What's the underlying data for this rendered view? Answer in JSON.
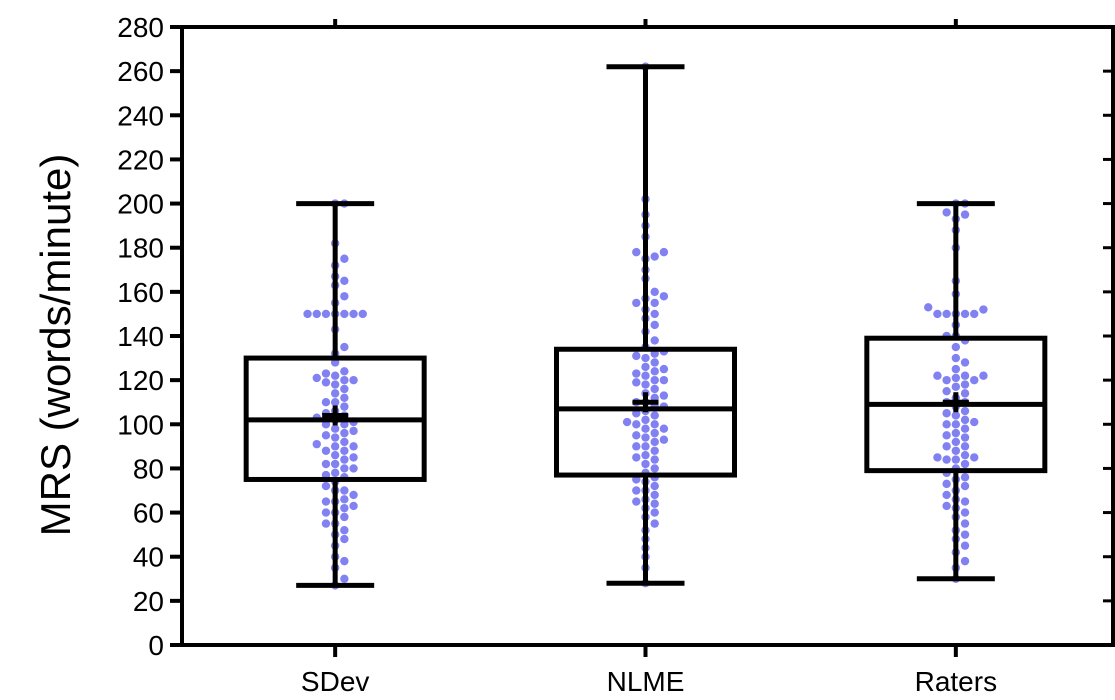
{
  "chart_data": {
    "type": "box",
    "ylabel": "MRS (words/minute)",
    "ylim": [
      0,
      280
    ],
    "yticks": [
      0,
      20,
      40,
      60,
      80,
      100,
      120,
      140,
      160,
      180,
      200,
      220,
      240,
      260,
      280
    ],
    "categories": [
      "SDev",
      "NLME",
      "Raters"
    ],
    "boxes": [
      {
        "category": "SDev",
        "min": 27,
        "q1": 75,
        "median": 102,
        "q3": 130,
        "max": 200,
        "mean": 104
      },
      {
        "category": "NLME",
        "min": 28,
        "q1": 77,
        "median": 107,
        "q3": 134,
        "max": 262,
        "mean": 110
      },
      {
        "category": "Raters",
        "min": 30,
        "q1": 79,
        "median": 109,
        "q3": 139,
        "max": 200,
        "mean": 110
      }
    ],
    "points": {
      "SDev": [
        27,
        30,
        35,
        38,
        40,
        45,
        48,
        50,
        52,
        55,
        55,
        58,
        60,
        60,
        62,
        63,
        65,
        65,
        66,
        68,
        70,
        70,
        72,
        74,
        76,
        77,
        78,
        80,
        80,
        82,
        82,
        84,
        85,
        86,
        88,
        88,
        90,
        90,
        91,
        92,
        94,
        95,
        96,
        97,
        98,
        100,
        100,
        101,
        102,
        103,
        104,
        105,
        106,
        108,
        110,
        110,
        112,
        114,
        116,
        118,
        119,
        120,
        120,
        121,
        122,
        123,
        124,
        128,
        132,
        135,
        143,
        150,
        150,
        150,
        150,
        150,
        150,
        150,
        155,
        158,
        163,
        165,
        167,
        172,
        175,
        182,
        200,
        200
      ],
      "NLME": [
        28,
        35,
        40,
        44,
        48,
        52,
        55,
        58,
        60,
        62,
        64,
        65,
        66,
        68,
        70,
        70,
        72,
        74,
        75,
        76,
        78,
        80,
        82,
        84,
        85,
        86,
        88,
        90,
        90,
        92,
        93,
        94,
        95,
        96,
        98,
        98,
        100,
        100,
        101,
        102,
        104,
        105,
        106,
        108,
        108,
        110,
        110,
        112,
        113,
        114,
        116,
        118,
        119,
        120,
        120,
        122,
        123,
        124,
        125,
        126,
        128,
        130,
        131,
        132,
        133,
        135,
        138,
        142,
        145,
        148,
        150,
        152,
        155,
        155,
        157,
        158,
        160,
        166,
        170,
        175,
        176,
        178,
        178,
        185,
        190,
        195,
        202,
        262
      ],
      "Raters": [
        30,
        35,
        38,
        42,
        45,
        48,
        50,
        52,
        55,
        58,
        60,
        62,
        63,
        65,
        66,
        68,
        70,
        72,
        73,
        75,
        76,
        78,
        80,
        82,
        84,
        84,
        85,
        85,
        86,
        88,
        90,
        90,
        92,
        94,
        95,
        96,
        98,
        100,
        100,
        101,
        102,
        104,
        105,
        106,
        108,
        110,
        110,
        112,
        114,
        115,
        117,
        118,
        120,
        120,
        121,
        122,
        122,
        122,
        125,
        128,
        130,
        135,
        138,
        140,
        140,
        145,
        150,
        150,
        150,
        150,
        150,
        152,
        153,
        159,
        165,
        180,
        188,
        193,
        195,
        196,
        200,
        200
      ]
    },
    "grid": false,
    "colors": {
      "points": "#6b6bf0",
      "box": "#000000"
    }
  }
}
